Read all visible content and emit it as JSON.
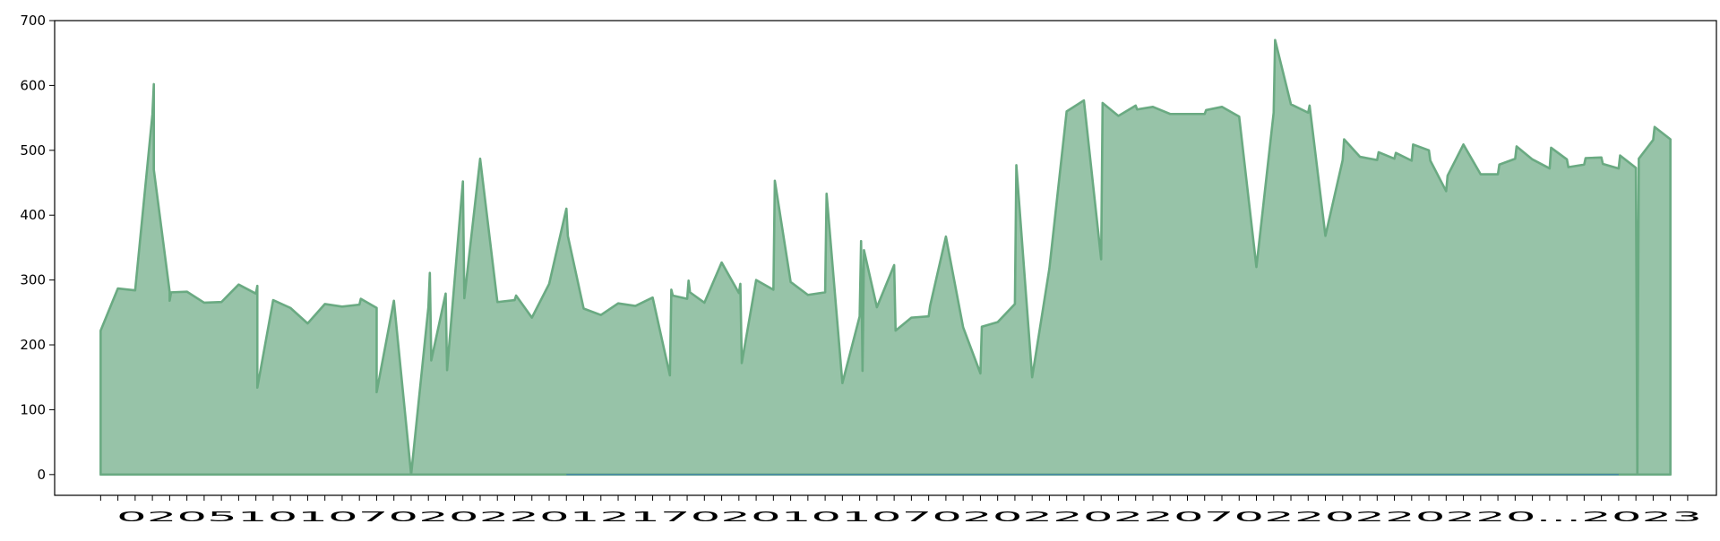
{
  "chart_data": {
    "type": "area",
    "title": "",
    "xlabel": "",
    "ylabel": "",
    "ylim": [
      -32,
      700
    ],
    "yticks": [
      0,
      100,
      200,
      300,
      400,
      500,
      600,
      700
    ],
    "x_tick_text": "02051010702022012170201010702022022070220220220...2023",
    "grid": false,
    "legend": "none",
    "colors": {
      "area_fill": "#97c3a8",
      "area_line": "#6aaa82",
      "baseline": "#3d7fb0"
    },
    "series": [
      {
        "values": [
          [
            0,
            0
          ],
          [
            0,
            222
          ],
          [
            12,
            287
          ],
          [
            24,
            284
          ],
          [
            36,
            555
          ],
          [
            37,
            602
          ],
          [
            37,
            470
          ],
          [
            48,
            282
          ],
          [
            48,
            268
          ],
          [
            49,
            281
          ],
          [
            60,
            282
          ],
          [
            72,
            265
          ],
          [
            84,
            266
          ],
          [
            96,
            293
          ],
          [
            108,
            279
          ],
          [
            109,
            291
          ],
          [
            109,
            134
          ],
          [
            120,
            269
          ],
          [
            132,
            257
          ],
          [
            144,
            233
          ],
          [
            156,
            263
          ],
          [
            168,
            259
          ],
          [
            180,
            262
          ],
          [
            181,
            271
          ],
          [
            192,
            257
          ],
          [
            192,
            127
          ],
          [
            204,
            268
          ],
          [
            216,
            0
          ],
          [
            228,
            258
          ],
          [
            229,
            311
          ],
          [
            230,
            176
          ],
          [
            240,
            279
          ],
          [
            241,
            161
          ],
          [
            252,
            452
          ],
          [
            253,
            272
          ],
          [
            264,
            487
          ],
          [
            276,
            266
          ],
          [
            288,
            269
          ],
          [
            289,
            276
          ],
          [
            300,
            242
          ],
          [
            312,
            294
          ],
          [
            324,
            410
          ],
          [
            325,
            368
          ],
          [
            336,
            256
          ],
          [
            348,
            246
          ],
          [
            360,
            264
          ],
          [
            372,
            260
          ],
          [
            384,
            273
          ],
          [
            396,
            153
          ],
          [
            397,
            285
          ],
          [
            398,
            276
          ],
          [
            408,
            271
          ],
          [
            409,
            299
          ],
          [
            410,
            281
          ],
          [
            420,
            265
          ],
          [
            432,
            327
          ],
          [
            444,
            280
          ],
          [
            445,
            294
          ],
          [
            446,
            172
          ],
          [
            456,
            300
          ],
          [
            468,
            285
          ],
          [
            469,
            453
          ],
          [
            480,
            297
          ],
          [
            492,
            277
          ],
          [
            504,
            281
          ],
          [
            505,
            433
          ],
          [
            516,
            141
          ],
          [
            528,
            244
          ],
          [
            529,
            360
          ],
          [
            530,
            160
          ],
          [
            531,
            346
          ],
          [
            540,
            258
          ],
          [
            552,
            323
          ],
          [
            553,
            222
          ],
          [
            564,
            242
          ],
          [
            576,
            244
          ],
          [
            577,
            260
          ],
          [
            588,
            367
          ],
          [
            600,
            227
          ],
          [
            612,
            156
          ],
          [
            613,
            228
          ],
          [
            624,
            235
          ],
          [
            636,
            263
          ],
          [
            637,
            477
          ],
          [
            648,
            150
          ],
          [
            660,
            318
          ],
          [
            672,
            560
          ],
          [
            684,
            577
          ],
          [
            696,
            332
          ],
          [
            697,
            573
          ],
          [
            708,
            553
          ],
          [
            720,
            569
          ],
          [
            721,
            563
          ],
          [
            732,
            567
          ],
          [
            744,
            556
          ],
          [
            756,
            556
          ],
          [
            768,
            556
          ],
          [
            769,
            562
          ],
          [
            780,
            567
          ],
          [
            792,
            552
          ],
          [
            804,
            320
          ],
          [
            816,
            558
          ],
          [
            817,
            670
          ],
          [
            828,
            571
          ],
          [
            840,
            558
          ],
          [
            841,
            569
          ],
          [
            852,
            368
          ],
          [
            864,
            485
          ],
          [
            865,
            517
          ],
          [
            876,
            490
          ],
          [
            888,
            485
          ],
          [
            889,
            497
          ],
          [
            900,
            487
          ],
          [
            901,
            496
          ],
          [
            912,
            484
          ],
          [
            913,
            509
          ],
          [
            924,
            500
          ],
          [
            925,
            484
          ],
          [
            936,
            437
          ],
          [
            937,
            461
          ],
          [
            948,
            509
          ],
          [
            960,
            463
          ],
          [
            972,
            463
          ],
          [
            973,
            478
          ],
          [
            984,
            487
          ],
          [
            985,
            506
          ],
          [
            996,
            486
          ],
          [
            1008,
            472
          ],
          [
            1009,
            504
          ],
          [
            1020,
            486
          ],
          [
            1021,
            474
          ],
          [
            1032,
            478
          ],
          [
            1033,
            488
          ],
          [
            1044,
            489
          ],
          [
            1045,
            479
          ],
          [
            1056,
            472
          ],
          [
            1057,
            492
          ],
          [
            1068,
            473
          ],
          [
            1069,
            0
          ],
          [
            1070,
            487
          ],
          [
            1080,
            516
          ],
          [
            1081,
            536
          ],
          [
            1092,
            517
          ],
          [
            1092,
            0
          ]
        ]
      }
    ],
    "baseline_segment": {
      "x_start": 324,
      "x_end": 1056,
      "y": 0
    },
    "xlim": [
      -32,
      1124
    ]
  }
}
